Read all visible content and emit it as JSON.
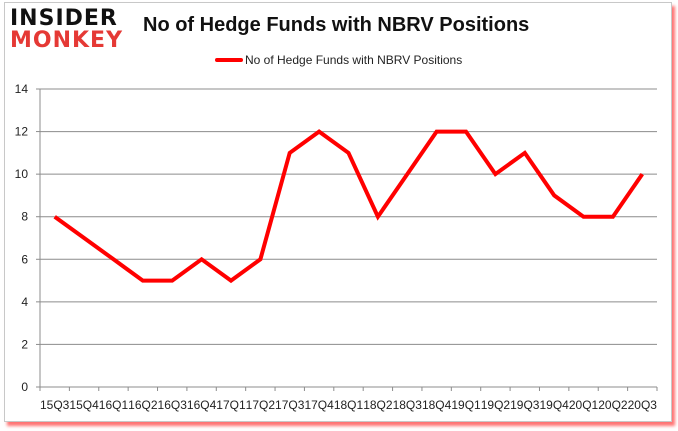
{
  "logo": {
    "line1": "INSIDER",
    "line2": "MONKEY"
  },
  "header": {
    "title": "No of Hedge Funds with NBRV Positions"
  },
  "legend": {
    "label": "No of Hedge Funds with NBRV Positions",
    "color": "#ff0000"
  },
  "chart_data": {
    "type": "line",
    "title": "No of Hedge Funds with NBRV Positions",
    "xlabel": "",
    "ylabel": "",
    "ylim": [
      0,
      14
    ],
    "yticks": [
      0,
      2,
      4,
      6,
      8,
      10,
      12,
      14
    ],
    "grid": true,
    "legend_position": "top",
    "categories": [
      "15Q3",
      "15Q4",
      "16Q1",
      "16Q2",
      "16Q3",
      "16Q4",
      "17Q1",
      "17Q2",
      "17Q3",
      "17Q4",
      "18Q1",
      "18Q2",
      "18Q3",
      "18Q4",
      "19Q1",
      "19Q2",
      "19Q3",
      "19Q4",
      "20Q1",
      "20Q2",
      "20Q3"
    ],
    "series": [
      {
        "name": "No of Hedge Funds with NBRV Positions",
        "color": "#ff0000",
        "values": [
          8,
          7,
          6,
          5,
          5,
          6,
          5,
          6,
          11,
          12,
          11,
          8,
          10,
          12,
          12,
          10,
          11,
          9,
          8,
          8,
          10
        ]
      }
    ]
  }
}
